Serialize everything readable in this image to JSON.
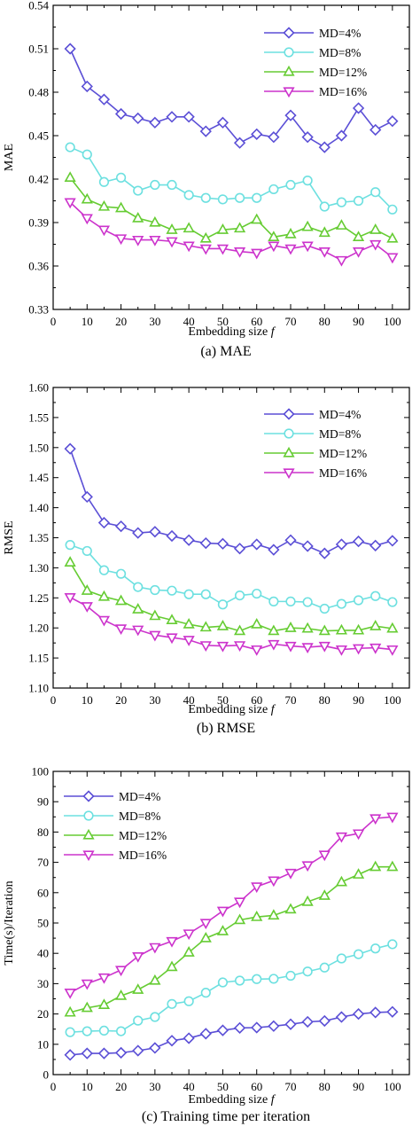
{
  "chart_data": [
    {
      "type": "line",
      "caption": "(a) MAE",
      "xlabel": "Embedding size",
      "xlabel_var": "f",
      "ylabel": "MAE",
      "xlim": [
        0,
        105
      ],
      "ylim": [
        0.33,
        0.54
      ],
      "xticks": [
        0,
        10,
        20,
        30,
        40,
        50,
        60,
        70,
        80,
        90,
        100
      ],
      "yticks": [
        0.33,
        0.36,
        0.39,
        0.42,
        0.45,
        0.48,
        0.51,
        0.54
      ],
      "ytick_labels": [
        "0.33",
        "0.36",
        "0.39",
        "0.42",
        "0.45",
        "0.48",
        "0.51",
        "0.54"
      ],
      "legend_position": "top-right",
      "x": [
        5,
        10,
        15,
        20,
        25,
        30,
        35,
        40,
        45,
        50,
        55,
        60,
        65,
        70,
        75,
        80,
        85,
        90,
        95,
        100
      ],
      "series": [
        {
          "name": "MD=4%",
          "marker": "diamond",
          "color": "#5b4fd6",
          "values": [
            0.51,
            0.484,
            0.475,
            0.465,
            0.462,
            0.459,
            0.463,
            0.463,
            0.453,
            0.459,
            0.445,
            0.451,
            0.449,
            0.464,
            0.449,
            0.442,
            0.45,
            0.469,
            0.454,
            0.46
          ]
        },
        {
          "name": "MD=8%",
          "marker": "circle",
          "color": "#6de0e0",
          "values": [
            0.442,
            0.437,
            0.418,
            0.421,
            0.412,
            0.416,
            0.416,
            0.409,
            0.407,
            0.406,
            0.407,
            0.407,
            0.413,
            0.416,
            0.419,
            0.401,
            0.404,
            0.405,
            0.411,
            0.399
          ]
        },
        {
          "name": "MD=12%",
          "marker": "triangle-up",
          "color": "#66cc33",
          "values": [
            0.421,
            0.406,
            0.401,
            0.4,
            0.393,
            0.39,
            0.385,
            0.386,
            0.379,
            0.385,
            0.386,
            0.392,
            0.38,
            0.382,
            0.387,
            0.383,
            0.388,
            0.38,
            0.385,
            0.379
          ]
        },
        {
          "name": "MD=16%",
          "marker": "triangle-down",
          "color": "#cc33cc",
          "values": [
            0.404,
            0.393,
            0.385,
            0.379,
            0.378,
            0.378,
            0.377,
            0.374,
            0.372,
            0.372,
            0.37,
            0.369,
            0.374,
            0.372,
            0.374,
            0.37,
            0.364,
            0.37,
            0.375,
            0.366
          ]
        }
      ]
    },
    {
      "type": "line",
      "caption": "(b) RMSE",
      "xlabel": "Embedding size",
      "xlabel_var": "f",
      "ylabel": "RMSE",
      "xlim": [
        0,
        105
      ],
      "ylim": [
        1.1,
        1.6
      ],
      "xticks": [
        0,
        10,
        20,
        30,
        40,
        50,
        60,
        70,
        80,
        90,
        100
      ],
      "yticks": [
        1.1,
        1.15,
        1.2,
        1.25,
        1.3,
        1.35,
        1.4,
        1.45,
        1.5,
        1.55,
        1.6
      ],
      "ytick_labels": [
        "1.10",
        "1.15",
        "1.20",
        "1.25",
        "1.30",
        "1.35",
        "1.40",
        "1.45",
        "1.50",
        "1.55",
        "1.60"
      ],
      "legend_position": "top-right",
      "x": [
        5,
        10,
        15,
        20,
        25,
        30,
        35,
        40,
        45,
        50,
        55,
        60,
        65,
        70,
        75,
        80,
        85,
        90,
        95,
        100
      ],
      "series": [
        {
          "name": "MD=4%",
          "marker": "diamond",
          "color": "#5b4fd6",
          "values": [
            1.498,
            1.418,
            1.375,
            1.369,
            1.358,
            1.36,
            1.353,
            1.346,
            1.341,
            1.34,
            1.332,
            1.339,
            1.33,
            1.346,
            1.336,
            1.324,
            1.339,
            1.344,
            1.337,
            1.345
          ]
        },
        {
          "name": "MD=8%",
          "marker": "circle",
          "color": "#6de0e0",
          "values": [
            1.338,
            1.328,
            1.296,
            1.29,
            1.268,
            1.263,
            1.262,
            1.256,
            1.256,
            1.239,
            1.254,
            1.257,
            1.244,
            1.244,
            1.243,
            1.232,
            1.24,
            1.246,
            1.253,
            1.243
          ]
        },
        {
          "name": "MD=12%",
          "marker": "triangle-up",
          "color": "#66cc33",
          "values": [
            1.309,
            1.262,
            1.252,
            1.245,
            1.231,
            1.22,
            1.213,
            1.206,
            1.201,
            1.203,
            1.195,
            1.206,
            1.195,
            1.2,
            1.199,
            1.195,
            1.196,
            1.196,
            1.203,
            1.199
          ]
        },
        {
          "name": "MD=16%",
          "marker": "triangle-down",
          "color": "#cc33cc",
          "values": [
            1.251,
            1.236,
            1.213,
            1.199,
            1.197,
            1.188,
            1.184,
            1.18,
            1.171,
            1.17,
            1.171,
            1.164,
            1.173,
            1.17,
            1.168,
            1.17,
            1.164,
            1.166,
            1.167,
            1.164
          ]
        }
      ]
    },
    {
      "type": "line",
      "caption": "(c) Training time per iteration",
      "xlabel": "Embedding size",
      "xlabel_var": "f",
      "ylabel": "Time(s)/Iteration",
      "xlim": [
        0,
        105
      ],
      "ylim": [
        0,
        100
      ],
      "xticks": [
        0,
        10,
        20,
        30,
        40,
        50,
        60,
        70,
        80,
        90,
        100
      ],
      "yticks": [
        0,
        10,
        20,
        30,
        40,
        50,
        60,
        70,
        80,
        90,
        100
      ],
      "ytick_labels": [
        "0",
        "10",
        "20",
        "30",
        "40",
        "50",
        "60",
        "70",
        "80",
        "90",
        "100"
      ],
      "legend_position": "top-left",
      "x": [
        5,
        10,
        15,
        20,
        25,
        30,
        35,
        40,
        45,
        50,
        55,
        60,
        65,
        70,
        75,
        80,
        85,
        90,
        95,
        100
      ],
      "series": [
        {
          "name": "MD=4%",
          "marker": "diamond",
          "color": "#5b4fd6",
          "values": [
            6.5,
            7.0,
            7.0,
            7.2,
            7.9,
            8.8,
            11.2,
            12.0,
            13.5,
            14.6,
            15.4,
            15.5,
            16.0,
            16.6,
            17.4,
            17.7,
            19.0,
            20.0,
            20.5,
            20.7
          ]
        },
        {
          "name": "MD=8%",
          "marker": "circle",
          "color": "#6de0e0",
          "values": [
            14.0,
            14.3,
            14.5,
            14.3,
            17.8,
            19.0,
            23.3,
            24.2,
            27.0,
            30.4,
            31.0,
            31.5,
            31.6,
            32.6,
            34.0,
            35.3,
            38.3,
            39.7,
            41.6,
            43.0
          ]
        },
        {
          "name": "MD=12%",
          "marker": "triangle-up",
          "color": "#66cc33",
          "values": [
            20.5,
            22.0,
            23.0,
            26.0,
            28.0,
            31.0,
            35.5,
            40.3,
            45.0,
            47.3,
            51.0,
            52.0,
            52.5,
            54.5,
            57.0,
            59.0,
            63.5,
            66.0,
            68.5,
            68.5
          ]
        },
        {
          "name": "MD=16%",
          "marker": "triangle-down",
          "color": "#cc33cc",
          "values": [
            27.0,
            30.0,
            32.0,
            34.5,
            39.0,
            42.0,
            44.0,
            46.5,
            50.0,
            54.0,
            57.0,
            62.0,
            64.0,
            66.5,
            69.0,
            72.5,
            78.5,
            79.5,
            84.5,
            85.0
          ]
        }
      ]
    }
  ]
}
